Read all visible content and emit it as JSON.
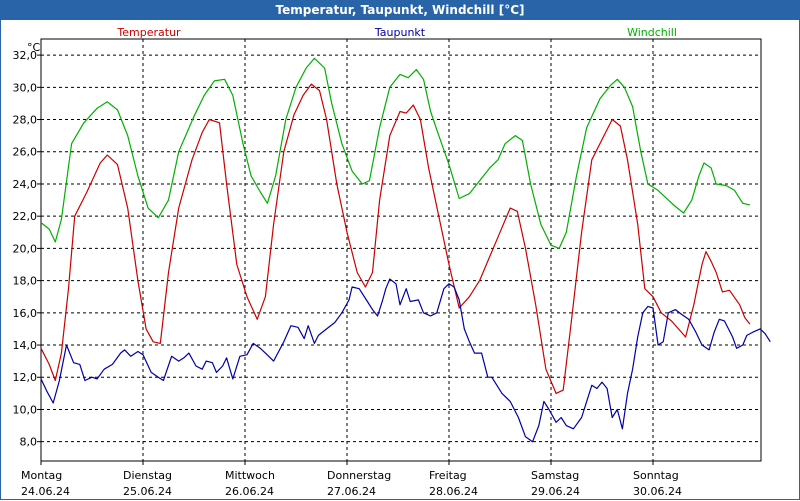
{
  "window": {
    "title": "Temperatur, Taupunkt, Windchill [°C]"
  },
  "chart_data": {
    "type": "line",
    "title": "Temperatur, Taupunkt, Windchill [°C]",
    "ylabel": "°C",
    "ylim": [
      6.8,
      33.0
    ],
    "xlim": [
      0,
      7.15
    ],
    "grid": true,
    "legend_placement": "top",
    "y_ticks": [
      "8,0",
      "10,0",
      "12,0",
      "14,0",
      "16,0",
      "18,0",
      "20,0",
      "22,0",
      "24,0",
      "26,0",
      "28,0",
      "30,0",
      "32,0"
    ],
    "x_ticks": [
      {
        "day": "Montag",
        "date": "24.06.24"
      },
      {
        "day": "Dienstag",
        "date": "25.06.24"
      },
      {
        "day": "Mittwoch",
        "date": "26.06.24"
      },
      {
        "day": "Donnerstag",
        "date": "27.06.24"
      },
      {
        "day": "Freitag",
        "date": "28.06.24"
      },
      {
        "day": "Samstag",
        "date": "29.06.24"
      },
      {
        "day": "Sonntag",
        "date": "30.06.24"
      }
    ],
    "series": [
      {
        "name": "Windchill",
        "color": "#00b000",
        "points": [
          [
            0.0,
            21.6
          ],
          [
            0.08,
            21.2
          ],
          [
            0.14,
            20.4
          ],
          [
            0.2,
            21.8
          ],
          [
            0.3,
            26.5
          ],
          [
            0.42,
            27.8
          ],
          [
            0.55,
            28.7
          ],
          [
            0.65,
            29.1
          ],
          [
            0.75,
            28.6
          ],
          [
            0.85,
            27.0
          ],
          [
            0.95,
            24.5
          ],
          [
            1.05,
            22.5
          ],
          [
            1.15,
            21.9
          ],
          [
            1.25,
            23.0
          ],
          [
            1.35,
            26.0
          ],
          [
            1.5,
            28.2
          ],
          [
            1.6,
            29.5
          ],
          [
            1.7,
            30.4
          ],
          [
            1.8,
            30.5
          ],
          [
            1.88,
            29.5
          ],
          [
            1.98,
            26.5
          ],
          [
            2.06,
            24.5
          ],
          [
            2.15,
            23.5
          ],
          [
            2.22,
            22.8
          ],
          [
            2.3,
            24.5
          ],
          [
            2.4,
            28.0
          ],
          [
            2.5,
            30.0
          ],
          [
            2.6,
            31.2
          ],
          [
            2.68,
            31.8
          ],
          [
            2.78,
            31.2
          ],
          [
            2.85,
            29.0
          ],
          [
            2.95,
            26.5
          ],
          [
            3.05,
            24.8
          ],
          [
            3.15,
            24.0
          ],
          [
            3.22,
            24.2
          ],
          [
            3.32,
            27.5
          ],
          [
            3.42,
            30.0
          ],
          [
            3.52,
            30.8
          ],
          [
            3.6,
            30.6
          ],
          [
            3.68,
            31.1
          ],
          [
            3.75,
            30.5
          ],
          [
            3.82,
            28.5
          ],
          [
            3.9,
            27.0
          ],
          [
            4.0,
            25.2
          ],
          [
            4.1,
            23.1
          ],
          [
            4.2,
            23.4
          ],
          [
            4.3,
            24.2
          ],
          [
            4.4,
            25.0
          ],
          [
            4.48,
            25.5
          ],
          [
            4.55,
            26.5
          ],
          [
            4.65,
            27.0
          ],
          [
            4.72,
            26.7
          ],
          [
            4.8,
            24.0
          ],
          [
            4.9,
            21.5
          ],
          [
            5.0,
            20.2
          ],
          [
            5.08,
            20.0
          ],
          [
            5.15,
            21.0
          ],
          [
            5.25,
            24.5
          ],
          [
            5.35,
            27.5
          ],
          [
            5.48,
            29.3
          ],
          [
            5.58,
            30.1
          ],
          [
            5.65,
            30.5
          ],
          [
            5.72,
            30.0
          ],
          [
            5.8,
            28.8
          ],
          [
            5.88,
            26.0
          ],
          [
            5.95,
            24.0
          ],
          [
            6.05,
            23.6
          ],
          [
            6.15,
            23.0
          ],
          [
            6.22,
            22.6
          ],
          [
            6.3,
            22.2
          ],
          [
            6.38,
            23.0
          ],
          [
            6.45,
            24.5
          ],
          [
            6.5,
            25.3
          ],
          [
            6.57,
            25.0
          ],
          [
            6.62,
            24.0
          ],
          [
            6.72,
            23.9
          ],
          [
            6.8,
            23.6
          ],
          [
            6.88,
            22.8
          ],
          [
            6.95,
            22.7
          ]
        ]
      },
      {
        "name": "Temperatur",
        "color": "#cc0000",
        "points": [
          [
            0.0,
            13.8
          ],
          [
            0.08,
            12.8
          ],
          [
            0.14,
            11.8
          ],
          [
            0.2,
            13.5
          ],
          [
            0.27,
            17.5
          ],
          [
            0.33,
            22.0
          ],
          [
            0.45,
            23.5
          ],
          [
            0.58,
            25.3
          ],
          [
            0.65,
            25.8
          ],
          [
            0.75,
            25.2
          ],
          [
            0.85,
            22.5
          ],
          [
            0.95,
            18.0
          ],
          [
            1.03,
            15.0
          ],
          [
            1.1,
            14.2
          ],
          [
            1.17,
            14.1
          ],
          [
            1.25,
            18.5
          ],
          [
            1.35,
            22.5
          ],
          [
            1.48,
            25.5
          ],
          [
            1.58,
            27.2
          ],
          [
            1.65,
            28.0
          ],
          [
            1.75,
            27.8
          ],
          [
            1.82,
            24.0
          ],
          [
            1.92,
            19.0
          ],
          [
            2.02,
            17.0
          ],
          [
            2.12,
            15.6
          ],
          [
            2.2,
            17.0
          ],
          [
            2.28,
            21.5
          ],
          [
            2.38,
            26.0
          ],
          [
            2.48,
            28.3
          ],
          [
            2.57,
            29.5
          ],
          [
            2.65,
            30.2
          ],
          [
            2.73,
            29.8
          ],
          [
            2.8,
            28.0
          ],
          [
            2.9,
            24.0
          ],
          [
            3.0,
            21.0
          ],
          [
            3.1,
            18.5
          ],
          [
            3.18,
            17.6
          ],
          [
            3.25,
            18.5
          ],
          [
            3.32,
            23.0
          ],
          [
            3.42,
            27.0
          ],
          [
            3.52,
            28.5
          ],
          [
            3.58,
            28.4
          ],
          [
            3.65,
            28.9
          ],
          [
            3.72,
            28.0
          ],
          [
            3.8,
            25.0
          ],
          [
            3.9,
            22.0
          ],
          [
            4.0,
            19.0
          ],
          [
            4.1,
            16.3
          ],
          [
            4.2,
            17.0
          ],
          [
            4.3,
            18.0
          ],
          [
            4.4,
            19.5
          ],
          [
            4.5,
            21.0
          ],
          [
            4.6,
            22.5
          ],
          [
            4.67,
            22.3
          ],
          [
            4.75,
            20.0
          ],
          [
            4.85,
            16.5
          ],
          [
            4.95,
            12.5
          ],
          [
            5.05,
            11.0
          ],
          [
            5.12,
            11.2
          ],
          [
            5.2,
            15.5
          ],
          [
            5.3,
            21.0
          ],
          [
            5.4,
            25.5
          ],
          [
            5.52,
            27.0
          ],
          [
            5.6,
            28.0
          ],
          [
            5.68,
            27.6
          ],
          [
            5.75,
            25.5
          ],
          [
            5.85,
            21.5
          ],
          [
            5.92,
            17.5
          ],
          [
            6.0,
            17.0
          ],
          [
            6.08,
            16.0
          ],
          [
            6.18,
            15.5
          ],
          [
            6.25,
            15.0
          ],
          [
            6.32,
            14.5
          ],
          [
            6.4,
            16.5
          ],
          [
            6.48,
            19.0
          ],
          [
            6.52,
            19.8
          ],
          [
            6.57,
            19.2
          ],
          [
            6.62,
            18.5
          ],
          [
            6.68,
            17.3
          ],
          [
            6.75,
            17.4
          ],
          [
            6.85,
            16.5
          ],
          [
            6.9,
            15.7
          ],
          [
            6.95,
            15.3
          ]
        ]
      },
      {
        "name": "Taupunkt",
        "color": "#0000aa",
        "points": [
          [
            0.0,
            11.9
          ],
          [
            0.06,
            11.1
          ],
          [
            0.12,
            10.4
          ],
          [
            0.18,
            11.8
          ],
          [
            0.25,
            14.0
          ],
          [
            0.32,
            12.9
          ],
          [
            0.38,
            12.8
          ],
          [
            0.43,
            11.8
          ],
          [
            0.5,
            12.0
          ],
          [
            0.55,
            11.9
          ],
          [
            0.62,
            12.5
          ],
          [
            0.7,
            12.8
          ],
          [
            0.78,
            13.5
          ],
          [
            0.82,
            13.7
          ],
          [
            0.88,
            13.3
          ],
          [
            0.95,
            13.6
          ],
          [
            1.0,
            13.4
          ],
          [
            1.08,
            12.3
          ],
          [
            1.15,
            12.0
          ],
          [
            1.2,
            11.8
          ],
          [
            1.28,
            13.3
          ],
          [
            1.35,
            13.0
          ],
          [
            1.4,
            13.2
          ],
          [
            1.45,
            13.5
          ],
          [
            1.52,
            12.7
          ],
          [
            1.58,
            12.5
          ],
          [
            1.62,
            13.0
          ],
          [
            1.68,
            12.9
          ],
          [
            1.72,
            12.3
          ],
          [
            1.78,
            12.7
          ],
          [
            1.82,
            13.2
          ],
          [
            1.88,
            11.9
          ],
          [
            1.95,
            13.3
          ],
          [
            2.02,
            13.4
          ],
          [
            2.08,
            14.1
          ],
          [
            2.15,
            13.8
          ],
          [
            2.2,
            13.5
          ],
          [
            2.28,
            13.0
          ],
          [
            2.38,
            14.2
          ],
          [
            2.45,
            15.2
          ],
          [
            2.52,
            15.1
          ],
          [
            2.58,
            14.4
          ],
          [
            2.62,
            15.2
          ],
          [
            2.68,
            14.1
          ],
          [
            2.72,
            14.6
          ],
          [
            2.8,
            15.0
          ],
          [
            2.88,
            15.4
          ],
          [
            2.95,
            16.0
          ],
          [
            3.02,
            16.8
          ],
          [
            3.05,
            17.6
          ],
          [
            3.12,
            17.5
          ],
          [
            3.2,
            16.7
          ],
          [
            3.25,
            16.2
          ],
          [
            3.3,
            15.8
          ],
          [
            3.35,
            16.8
          ],
          [
            3.38,
            17.5
          ],
          [
            3.42,
            18.1
          ],
          [
            3.48,
            17.8
          ],
          [
            3.52,
            16.5
          ],
          [
            3.58,
            17.5
          ],
          [
            3.62,
            16.7
          ],
          [
            3.7,
            16.8
          ],
          [
            3.75,
            16.0
          ],
          [
            3.82,
            15.8
          ],
          [
            3.88,
            16.0
          ],
          [
            3.95,
            17.5
          ],
          [
            4.0,
            17.8
          ],
          [
            4.05,
            17.6
          ],
          [
            4.1,
            16.8
          ],
          [
            4.15,
            15.0
          ],
          [
            4.2,
            14.2
          ],
          [
            4.25,
            13.5
          ],
          [
            4.32,
            13.5
          ],
          [
            4.38,
            12.0
          ],
          [
            4.42,
            12.0
          ],
          [
            4.52,
            11.0
          ],
          [
            4.6,
            10.5
          ],
          [
            4.68,
            9.5
          ],
          [
            4.75,
            8.3
          ],
          [
            4.82,
            8.0
          ],
          [
            4.88,
            9.0
          ],
          [
            4.93,
            10.5
          ],
          [
            4.98,
            10.0
          ],
          [
            5.05,
            9.2
          ],
          [
            5.1,
            9.5
          ],
          [
            5.15,
            9.0
          ],
          [
            5.22,
            8.8
          ],
          [
            5.3,
            9.5
          ],
          [
            5.35,
            10.5
          ],
          [
            5.4,
            11.5
          ],
          [
            5.45,
            11.3
          ],
          [
            5.5,
            11.7
          ],
          [
            5.55,
            11.3
          ],
          [
            5.6,
            9.5
          ],
          [
            5.65,
            10.0
          ],
          [
            5.7,
            8.8
          ],
          [
            5.75,
            11.0
          ],
          [
            5.8,
            12.5
          ],
          [
            5.85,
            14.5
          ],
          [
            5.9,
            16.0
          ],
          [
            5.95,
            16.4
          ],
          [
            6.0,
            16.3
          ],
          [
            6.05,
            14.0
          ],
          [
            6.1,
            14.2
          ],
          [
            6.15,
            16.0
          ],
          [
            6.22,
            16.2
          ],
          [
            6.28,
            15.9
          ],
          [
            6.35,
            15.6
          ],
          [
            6.42,
            14.8
          ],
          [
            6.48,
            14.0
          ],
          [
            6.55,
            13.7
          ],
          [
            6.6,
            14.8
          ],
          [
            6.65,
            15.6
          ],
          [
            6.7,
            15.5
          ],
          [
            6.78,
            14.5
          ],
          [
            6.82,
            13.8
          ],
          [
            6.88,
            14.0
          ],
          [
            6.92,
            14.6
          ],
          [
            6.98,
            14.8
          ],
          [
            7.05,
            15.0
          ],
          [
            7.1,
            14.7
          ],
          [
            7.15,
            14.2
          ]
        ]
      }
    ]
  }
}
